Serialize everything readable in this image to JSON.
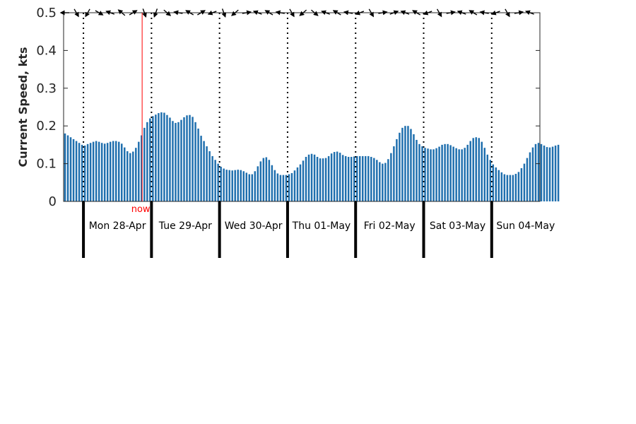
{
  "chart_data": {
    "type": "bar",
    "ylabel": "Current Speed, kts",
    "ylim": [
      0,
      0.5
    ],
    "yticks": [
      "0",
      "0.1",
      "0.2",
      "0.3",
      "0.4",
      "0.5"
    ],
    "ytick_values": [
      0,
      0.1,
      0.2,
      0.3,
      0.4,
      0.5
    ],
    "x_unit": "hours since plot start",
    "x_range": [
      0,
      168
    ],
    "bar_step_hours": 1,
    "days": [
      "Mon 28-Apr",
      "Tue 29-Apr",
      "Wed 30-Apr",
      "Thu 01-May",
      "Fri 02-May",
      "Sat 03-May",
      "Sun 04-May"
    ],
    "day_boundaries": [
      7,
      31,
      55,
      79,
      103,
      127,
      151
    ],
    "now_marker": {
      "label": "now",
      "x": 27.7
    },
    "grid": "vertical dotted at day boundaries",
    "colors": {
      "bar": "#1f6fae",
      "now": "#ff0000",
      "axis": "#262626",
      "day_line": "#000000"
    },
    "values": [
      0.18,
      0.175,
      0.17,
      0.165,
      0.16,
      0.155,
      0.15,
      0.148,
      0.152,
      0.155,
      0.158,
      0.16,
      0.158,
      0.155,
      0.153,
      0.155,
      0.158,
      0.16,
      0.16,
      0.158,
      0.153,
      0.143,
      0.133,
      0.128,
      0.132,
      0.142,
      0.158,
      0.175,
      0.195,
      0.21,
      0.22,
      0.226,
      0.23,
      0.234,
      0.236,
      0.235,
      0.229,
      0.222,
      0.213,
      0.208,
      0.21,
      0.216,
      0.223,
      0.228,
      0.229,
      0.224,
      0.21,
      0.193,
      0.174,
      0.16,
      0.146,
      0.133,
      0.12,
      0.11,
      0.1,
      0.092,
      0.087,
      0.084,
      0.083,
      0.082,
      0.083,
      0.084,
      0.083,
      0.08,
      0.076,
      0.072,
      0.072,
      0.08,
      0.093,
      0.106,
      0.115,
      0.117,
      0.11,
      0.096,
      0.083,
      0.074,
      0.07,
      0.07,
      0.07,
      0.072,
      0.075,
      0.082,
      0.09,
      0.098,
      0.108,
      0.118,
      0.124,
      0.126,
      0.124,
      0.118,
      0.114,
      0.114,
      0.115,
      0.12,
      0.127,
      0.131,
      0.132,
      0.129,
      0.123,
      0.12,
      0.118,
      0.118,
      0.119,
      0.12,
      0.12,
      0.12,
      0.12,
      0.12,
      0.118,
      0.115,
      0.11,
      0.104,
      0.1,
      0.102,
      0.112,
      0.128,
      0.146,
      0.165,
      0.182,
      0.195,
      0.2,
      0.2,
      0.192,
      0.178,
      0.163,
      0.152,
      0.146,
      0.142,
      0.14,
      0.138,
      0.138,
      0.141,
      0.145,
      0.15,
      0.152,
      0.152,
      0.149,
      0.145,
      0.141,
      0.138,
      0.138,
      0.142,
      0.15,
      0.16,
      0.168,
      0.17,
      0.168,
      0.158,
      0.142,
      0.124,
      0.11,
      0.098,
      0.09,
      0.083,
      0.077,
      0.072,
      0.07,
      0.07,
      0.07,
      0.073,
      0.078,
      0.088,
      0.1,
      0.115,
      0.13,
      0.143,
      0.152,
      0.155,
      0.152,
      0.148,
      0.144,
      0.143,
      0.145,
      0.148,
      0.15
    ],
    "directions": [
      {
        "x": 0.5,
        "angle": 180
      },
      {
        "x": 4.5,
        "angle": -60
      },
      {
        "x": 8.5,
        "angle": -120
      },
      {
        "x": 12.5,
        "angle": -30
      },
      {
        "x": 16.5,
        "angle": 160
      },
      {
        "x": 20.5,
        "angle": 140
      },
      {
        "x": 24.5,
        "angle": 30
      },
      {
        "x": 28.5,
        "angle": -70
      },
      {
        "x": 32.5,
        "angle": -110
      },
      {
        "x": 36.5,
        "angle": -40
      },
      {
        "x": 40.5,
        "angle": 170
      },
      {
        "x": 44.5,
        "angle": 150
      },
      {
        "x": 48.5,
        "angle": 30
      },
      {
        "x": 52.5,
        "angle": 200
      },
      {
        "x": 56.5,
        "angle": -70
      },
      {
        "x": 60.5,
        "angle": -140
      },
      {
        "x": 64.5,
        "angle": 10
      },
      {
        "x": 68.5,
        "angle": 160
      },
      {
        "x": 72.5,
        "angle": 150
      },
      {
        "x": 76.5,
        "angle": 170
      },
      {
        "x": 80.5,
        "angle": -60
      },
      {
        "x": 84.5,
        "angle": -140
      },
      {
        "x": 88.5,
        "angle": -40
      },
      {
        "x": 92.5,
        "angle": 160
      },
      {
        "x": 96.5,
        "angle": 150
      },
      {
        "x": 100.5,
        "angle": 170
      },
      {
        "x": 104.5,
        "angle": 200
      },
      {
        "x": 108.5,
        "angle": -60
      },
      {
        "x": 112.5,
        "angle": 10
      },
      {
        "x": 116.5,
        "angle": 20
      },
      {
        "x": 120.5,
        "angle": 160
      },
      {
        "x": 124.5,
        "angle": 150
      },
      {
        "x": 128.5,
        "angle": 200
      },
      {
        "x": 132.5,
        "angle": -60
      },
      {
        "x": 136.5,
        "angle": 10
      },
      {
        "x": 140.5,
        "angle": 160
      },
      {
        "x": 144.5,
        "angle": 150
      },
      {
        "x": 148.5,
        "angle": 170
      },
      {
        "x": 152.5,
        "angle": 200
      },
      {
        "x": 156.5,
        "angle": -60
      },
      {
        "x": 160.5,
        "angle": 10
      },
      {
        "x": 164.5,
        "angle": 160
      }
    ]
  }
}
